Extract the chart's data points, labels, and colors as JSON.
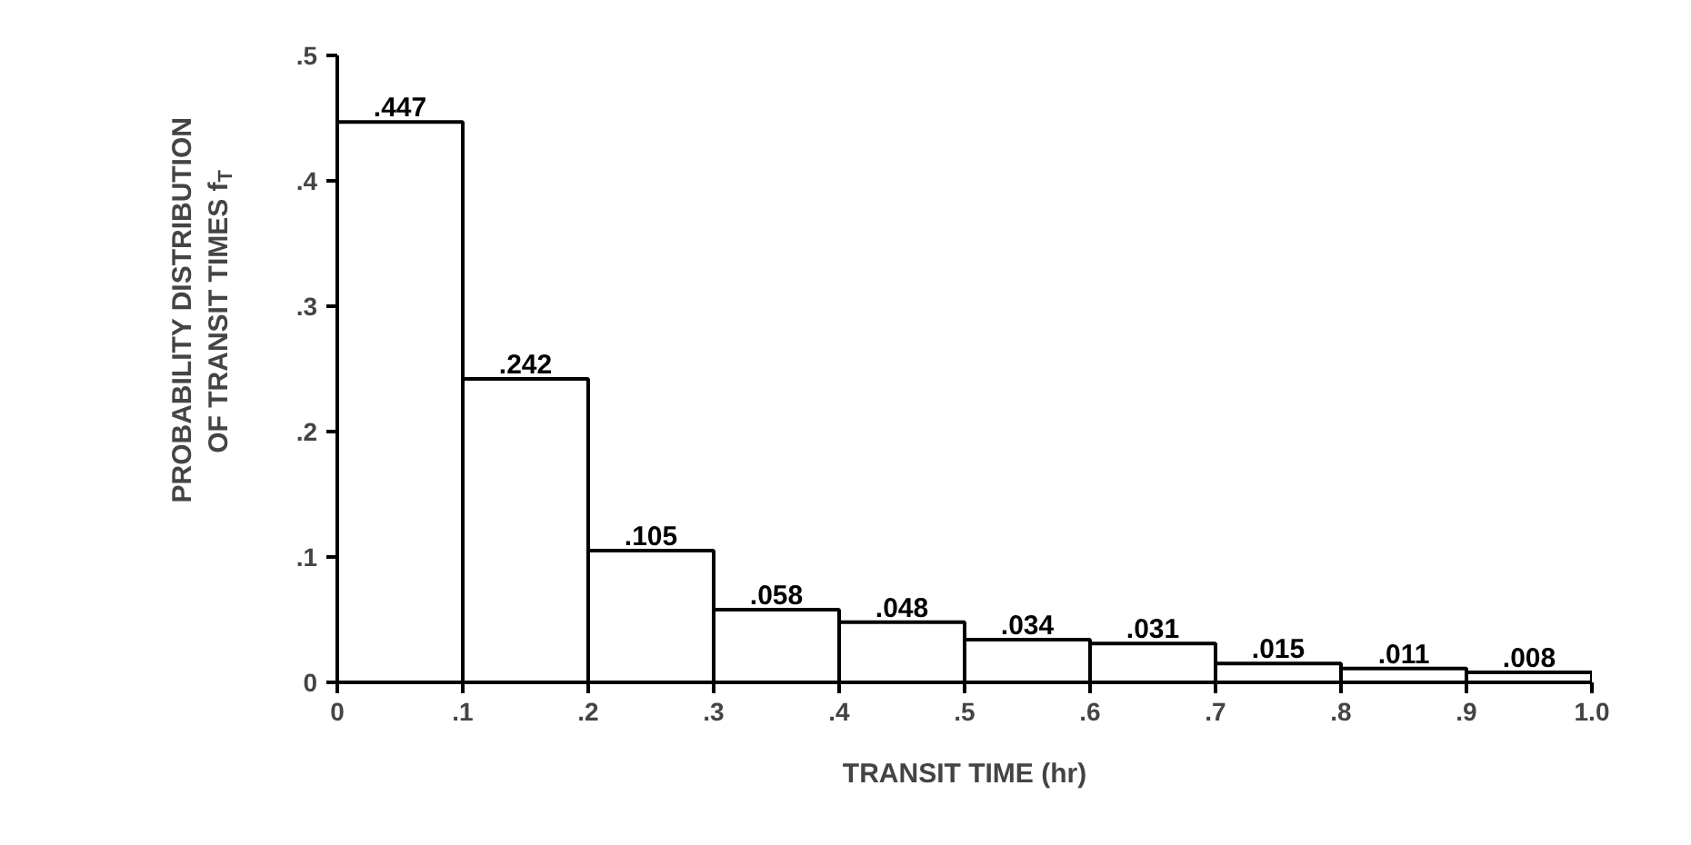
{
  "chart_data": {
    "type": "histogram",
    "xlabel": "TRANSIT TIME (hr)",
    "ylabel": "PROBABILITY DISTRIBUTION\nOF TRANSIT TIMES f$_{T}$",
    "bins": [
      0,
      0.1,
      0.2,
      0.3,
      0.4,
      0.5,
      0.6,
      0.7,
      0.8,
      0.9,
      1.0
    ],
    "values": [
      0.447,
      0.242,
      0.105,
      0.058,
      0.048,
      0.034,
      0.031,
      0.015,
      0.011,
      0.008
    ],
    "value_labels": [
      ".447",
      ".242",
      ".105",
      ".058",
      ".048",
      ".034",
      ".031",
      ".015",
      ".011",
      ".008"
    ],
    "color": "#ffffff",
    "xlim": [
      0,
      1.0
    ],
    "ylim": [
      0,
      0.5
    ],
    "xticks": [
      0,
      {
        "value": 0.1,
        "label": ".1"
      },
      {
        "value": 0.2,
        "label": ".2"
      },
      {
        "value": 0.3,
        "label": ".3"
      },
      {
        "value": 0.4,
        "label": ".4"
      },
      {
        "value": 0.5,
        "label": ".5"
      },
      {
        "value": 0.6,
        "label": ".6"
      },
      {
        "value": 0.7,
        "label": ".7"
      },
      {
        "value": 0.8,
        "label": ".8"
      },
      {
        "value": 0.9,
        "label": ".9"
      },
      {
        "value": 1.0,
        "label": "1.0"
      }
    ],
    "yticks": [
      0,
      {
        "value": 0.1,
        "label": ".1"
      },
      {
        "value": 0.2,
        "label": ".2"
      },
      {
        "value": 0.3,
        "label": ".3"
      },
      {
        "value": 0.4,
        "label": ".4"
      },
      {
        "value": 0.5,
        "label": ".5"
      }
    ],
    "grid": false
  }
}
